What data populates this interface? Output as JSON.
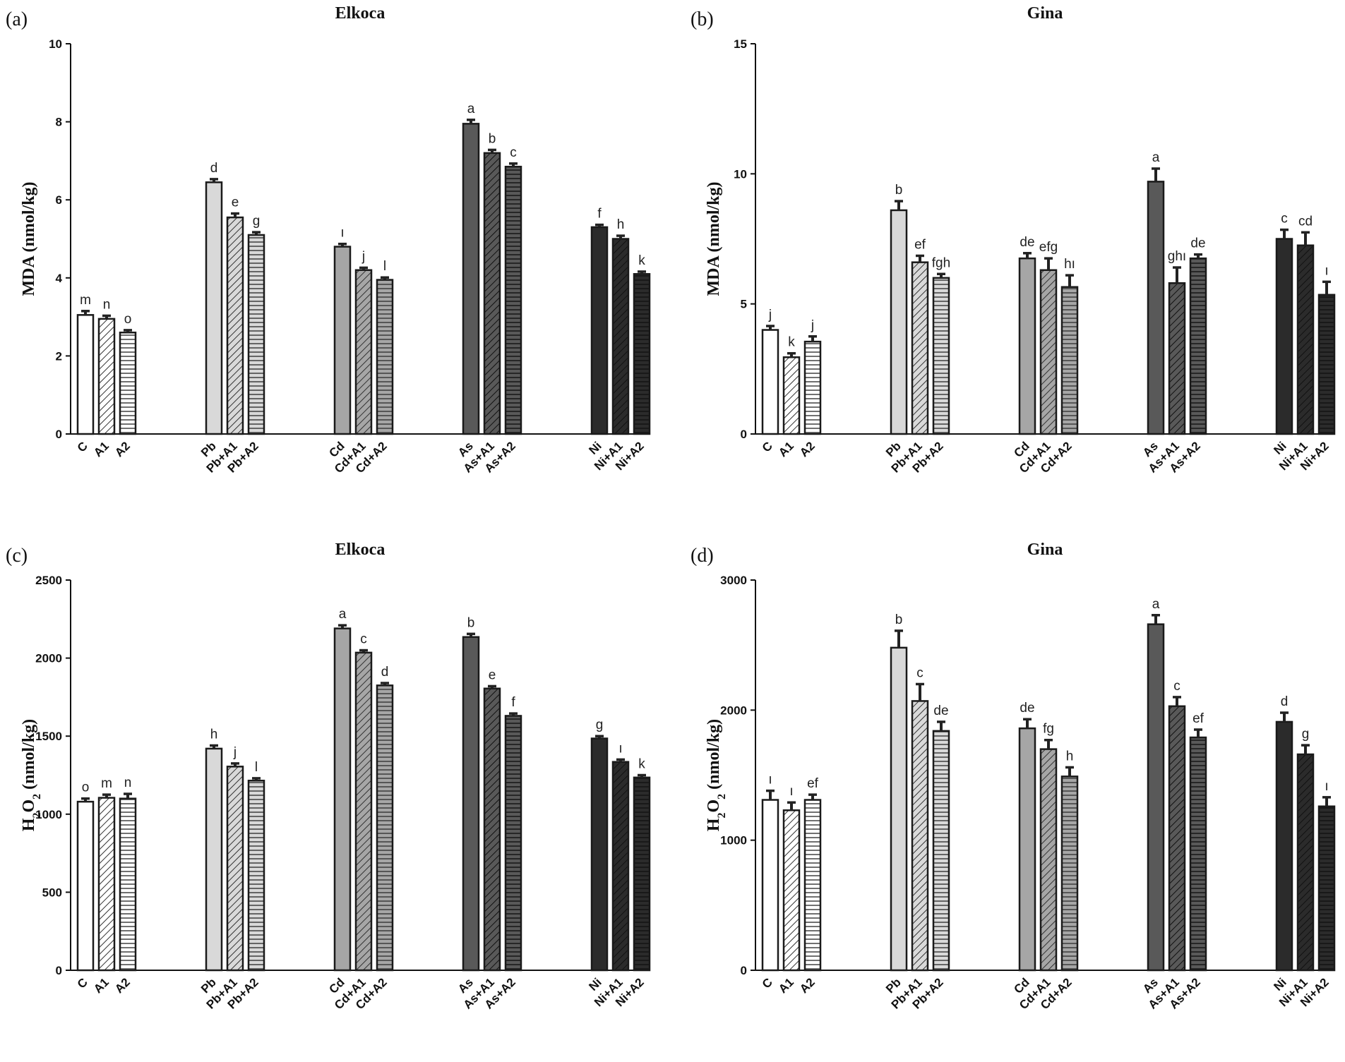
{
  "chart_data": [
    {
      "type": "bar",
      "panel": "(a)",
      "title": "Elkoca",
      "ylabel": "MDA (nmol/kg)",
      "ylim": [
        0,
        10
      ],
      "yticks": [
        0,
        2,
        4,
        6,
        8,
        10
      ],
      "groups": [
        [
          "C",
          "A1",
          "A2"
        ],
        [
          "Pb",
          "Pb+A1",
          "Pb+A2"
        ],
        [
          "Cd",
          "Cd+A1",
          "Cd+A2"
        ],
        [
          "As",
          "As+A1",
          "As+A2"
        ],
        [
          "Ni",
          "Ni+A1",
          "Ni+A2"
        ]
      ],
      "values": [
        [
          3.05,
          2.95,
          2.6
        ],
        [
          6.45,
          5.55,
          5.1
        ],
        [
          4.8,
          4.2,
          3.95
        ],
        [
          7.95,
          7.2,
          6.85
        ],
        [
          5.3,
          5.0,
          4.1
        ]
      ],
      "errors": [
        [
          0.1,
          0.08,
          0.06
        ],
        [
          0.08,
          0.1,
          0.07
        ],
        [
          0.07,
          0.06,
          0.06
        ],
        [
          0.1,
          0.08,
          0.08
        ],
        [
          0.06,
          0.08,
          0.06
        ]
      ],
      "letters": [
        [
          "m",
          "n",
          "o"
        ],
        [
          "d",
          "e",
          "g"
        ],
        [
          "ı",
          "j",
          "l"
        ],
        [
          "a",
          "b",
          "c"
        ],
        [
          "f",
          "h",
          "k"
        ]
      ]
    },
    {
      "type": "bar",
      "panel": "(b)",
      "title": "Gina",
      "ylabel": "MDA (nmol/kg)",
      "ylim": [
        0,
        15
      ],
      "yticks": [
        0,
        5,
        10,
        15
      ],
      "groups": [
        [
          "C",
          "A1",
          "A2"
        ],
        [
          "Pb",
          "Pb+A1",
          "Pb+A2"
        ],
        [
          "Cd",
          "Cd+A1",
          "Cd+A2"
        ],
        [
          "As",
          "As+A1",
          "As+A2"
        ],
        [
          "Ni",
          "Ni+A1",
          "Ni+A2"
        ]
      ],
      "values": [
        [
          4.0,
          2.95,
          3.55
        ],
        [
          8.6,
          6.6,
          6.0
        ],
        [
          6.75,
          6.3,
          5.65
        ],
        [
          9.7,
          5.8,
          6.75
        ],
        [
          7.5,
          7.25,
          5.35
        ]
      ],
      "errors": [
        [
          0.15,
          0.15,
          0.2
        ],
        [
          0.35,
          0.25,
          0.15
        ],
        [
          0.2,
          0.45,
          0.45
        ],
        [
          0.5,
          0.6,
          0.15
        ],
        [
          0.35,
          0.5,
          0.5
        ]
      ],
      "letters": [
        [
          "j",
          "k",
          "j"
        ],
        [
          "b",
          "ef",
          "fgh"
        ],
        [
          "de",
          "efg",
          "hı"
        ],
        [
          "a",
          "ghı",
          "de"
        ],
        [
          "c",
          "cd",
          "ı"
        ]
      ]
    },
    {
      "type": "bar",
      "panel": "(c)",
      "title": "Elkoca",
      "ylabel": "H2O2 (nmol/kg)",
      "ylim": [
        0,
        2500
      ],
      "yticks": [
        0,
        500,
        1000,
        1500,
        2000,
        2500
      ],
      "groups": [
        [
          "C",
          "A1",
          "A2"
        ],
        [
          "Pb",
          "Pb+A1",
          "Pb+A2"
        ],
        [
          "Cd",
          "Cd+A1",
          "Cd+A2"
        ],
        [
          "As",
          "As+A1",
          "As+A2"
        ],
        [
          "Ni",
          "Ni+A1",
          "Ni+A2"
        ]
      ],
      "values": [
        [
          1080,
          1105,
          1100
        ],
        [
          1420,
          1305,
          1215
        ],
        [
          2190,
          2035,
          1825
        ],
        [
          2135,
          1805,
          1630
        ],
        [
          1485,
          1335,
          1235
        ]
      ],
      "errors": [
        [
          20,
          20,
          30
        ],
        [
          20,
          20,
          15
        ],
        [
          20,
          15,
          15
        ],
        [
          20,
          15,
          15
        ],
        [
          15,
          15,
          15
        ]
      ],
      "letters": [
        [
          "o",
          "m",
          "n"
        ],
        [
          "h",
          "j",
          "l"
        ],
        [
          "a",
          "c",
          "d"
        ],
        [
          "b",
          "e",
          "f"
        ],
        [
          "g",
          "ı",
          "k"
        ]
      ]
    },
    {
      "type": "bar",
      "panel": "(d)",
      "title": "Gina",
      "ylabel": "H2O2 (nmol/kg)",
      "ylim": [
        0,
        3000
      ],
      "yticks": [
        0,
        1000,
        2000,
        3000
      ],
      "groups": [
        [
          "C",
          "A1",
          "A2"
        ],
        [
          "Pb",
          "Pb+A1",
          "Pb+A2"
        ],
        [
          "Cd",
          "Cd+A1",
          "Cd+A2"
        ],
        [
          "As",
          "As+A1",
          "As+A2"
        ],
        [
          "Ni",
          "Ni+A1",
          "Ni+A2"
        ]
      ],
      "values": [
        [
          1310,
          1230,
          1310
        ],
        [
          2480,
          2070,
          1840
        ],
        [
          1860,
          1700,
          1490
        ],
        [
          2660,
          2030,
          1790
        ],
        [
          1910,
          1660,
          1260
        ]
      ],
      "errors": [
        [
          70,
          60,
          40
        ],
        [
          130,
          130,
          70
        ],
        [
          70,
          70,
          70
        ],
        [
          70,
          70,
          60
        ],
        [
          70,
          70,
          70
        ]
      ],
      "letters": [
        [
          "ı",
          "ı",
          "ef"
        ],
        [
          "b",
          "c",
          "de"
        ],
        [
          "de",
          "fg",
          "h"
        ],
        [
          "a",
          "c",
          "ef"
        ],
        [
          "d",
          "g",
          "ı"
        ]
      ]
    }
  ],
  "style": {
    "group_fills": [
      "#ffffff",
      "#d9d9d9",
      "#a6a6a6",
      "#595959",
      "#2b2b2b"
    ],
    "border": "#1a1a1a"
  }
}
